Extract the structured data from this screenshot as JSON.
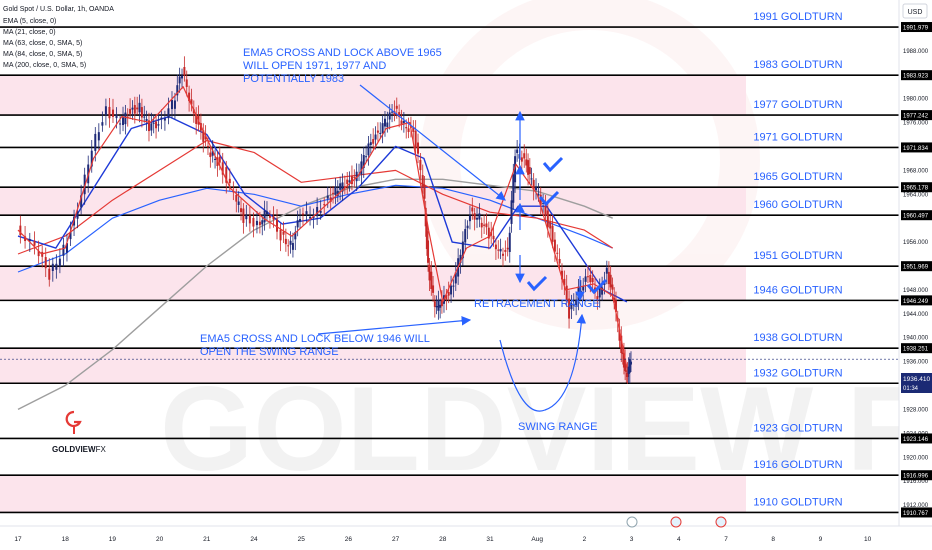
{
  "header": {
    "title": "Gold Spot / U.S. Dollar, 1h, OANDA",
    "indicators": [
      "EMA (5, close, 0)",
      "MA (21, close, 0)",
      "MA (63, close, 0, SMA, 5)",
      "MA (84, close, 0, SMA, 5)",
      "MA (200, close, 0, SMA, 5)"
    ],
    "currency": "USD"
  },
  "watermark": "GOLDVIEW FX",
  "logo": {
    "text_bold": "GOLDVIEW",
    "text_light": "FX"
  },
  "annotations": {
    "top_note": [
      "EMA5 CROSS AND LOCK ABOVE 1965",
      "WILL OPEN 1971, 1977 AND",
      "POTENTIALLY 1983"
    ],
    "bottom_note": [
      "EMA5 CROSS AND LOCK BELOW 1946 WILL",
      "OPEN THE SWING RANGE"
    ],
    "retracement": "RETRACEMENT RANGE",
    "swing": "SWING RANGE"
  },
  "colors": {
    "zone": "#fce4ec",
    "level_text": "#2962ff",
    "ema5": "#e53935",
    "ma21": "#1e3ad8",
    "ma63": "#e53935",
    "ma84": "#2962ff",
    "ma200": "#9e9e9e",
    "candle_up": "#1e2a78",
    "candle_down": "#c62828",
    "price_tag": "#1b2a74"
  },
  "chart_data": {
    "type": "line",
    "symbol": "XAUUSD",
    "timeframe": "1h",
    "ylim": [
      1908.5,
      1996.5
    ],
    "y_ticks": [
      1912,
      1916,
      1920,
      1924,
      1928,
      1932,
      1936,
      1940,
      1944,
      1948,
      1952,
      1956,
      1960,
      1964,
      1968,
      1972,
      1976,
      1980,
      1984,
      1988
    ],
    "x_ticks": [
      "17",
      "18",
      "19",
      "20",
      "21",
      "24",
      "25",
      "26",
      "27",
      "28",
      "31",
      "Aug",
      "2",
      "3",
      "4",
      "7",
      "8",
      "9",
      "10"
    ],
    "levels": [
      {
        "price": 1991.979,
        "tag": "1991.979",
        "label": "1991 GOLDTURN"
      },
      {
        "price": 1983.923,
        "tag": "1983.923",
        "label": "1983 GOLDTURN"
      },
      {
        "price": 1977.242,
        "tag": "1977.242",
        "label": "1977 GOLDTURN"
      },
      {
        "price": 1971.834,
        "tag": "1971.834",
        "label": "1971 GOLDTURN"
      },
      {
        "price": 1965.178,
        "tag": "1965.178",
        "label": "1965 GOLDTURN"
      },
      {
        "price": 1960.497,
        "tag": "1960.497",
        "label": "1960 GOLDTURN"
      },
      {
        "price": 1951.969,
        "tag": "1951.969",
        "label": "1951 GOLDTURN"
      },
      {
        "price": 1946.249,
        "tag": "1946.249",
        "label": "1946 GOLDTURN"
      },
      {
        "price": 1938.251,
        "tag": "1938.251",
        "label": "1938 GOLDTURN"
      },
      {
        "price": 1932.381,
        "tag": "1932.381",
        "label": "1932 GOLDTURN"
      },
      {
        "price": 1923.146,
        "tag": "1923.146",
        "label": "1923 GOLDTURN"
      },
      {
        "price": 1916.996,
        "tag": "1916.996",
        "label": "1916 GOLDTURN"
      },
      {
        "price": 1910.767,
        "tag": "1910.767",
        "label": "1910 GOLDTURN"
      }
    ],
    "zones": [
      [
        1983.923,
        1977.242
      ],
      [
        1965.178,
        1960.497
      ],
      [
        1951.969,
        1946.249
      ],
      [
        1938.251,
        1932.381
      ],
      [
        1916.996,
        1910.767
      ]
    ],
    "current_price": {
      "value": "1936.410",
      "countdown": "01:34",
      "numeric": 1936.41
    },
    "price_series": [
      {
        "x": 0,
        "y": 1958.5
      },
      {
        "x": 0.4,
        "y": 1955
      },
      {
        "x": 0.7,
        "y": 1950.5
      },
      {
        "x": 1.0,
        "y": 1955
      },
      {
        "x": 1.3,
        "y": 1961
      },
      {
        "x": 1.6,
        "y": 1972
      },
      {
        "x": 1.9,
        "y": 1978
      },
      {
        "x": 2.2,
        "y": 1976
      },
      {
        "x": 2.4,
        "y": 1978
      },
      {
        "x": 2.6,
        "y": 1978.5
      },
      {
        "x": 2.8,
        "y": 1975
      },
      {
        "x": 3.0,
        "y": 1976
      },
      {
        "x": 3.3,
        "y": 1979
      },
      {
        "x": 3.5,
        "y": 1984.5
      },
      {
        "x": 3.7,
        "y": 1979
      },
      {
        "x": 3.9,
        "y": 1974
      },
      {
        "x": 4.1,
        "y": 1971
      },
      {
        "x": 4.3,
        "y": 1969
      },
      {
        "x": 4.6,
        "y": 1964
      },
      {
        "x": 4.8,
        "y": 1960
      },
      {
        "x": 5.1,
        "y": 1959
      },
      {
        "x": 5.3,
        "y": 1961
      },
      {
        "x": 5.6,
        "y": 1957
      },
      {
        "x": 5.8,
        "y": 1955.5
      },
      {
        "x": 6.0,
        "y": 1960
      },
      {
        "x": 6.3,
        "y": 1961
      },
      {
        "x": 6.6,
        "y": 1963
      },
      {
        "x": 6.8,
        "y": 1965
      },
      {
        "x": 7.0,
        "y": 1966
      },
      {
        "x": 7.2,
        "y": 1967
      },
      {
        "x": 7.4,
        "y": 1971
      },
      {
        "x": 7.6,
        "y": 1974
      },
      {
        "x": 7.8,
        "y": 1976
      },
      {
        "x": 8.0,
        "y": 1978
      },
      {
        "x": 8.2,
        "y": 1976
      },
      {
        "x": 8.4,
        "y": 1974
      },
      {
        "x": 8.6,
        "y": 1966
      },
      {
        "x": 8.7,
        "y": 1952
      },
      {
        "x": 8.85,
        "y": 1945
      },
      {
        "x": 9.0,
        "y": 1946
      },
      {
        "x": 9.2,
        "y": 1948
      },
      {
        "x": 9.4,
        "y": 1954
      },
      {
        "x": 9.6,
        "y": 1961
      },
      {
        "x": 9.8,
        "y": 1960
      },
      {
        "x": 10.0,
        "y": 1957
      },
      {
        "x": 10.2,
        "y": 1955
      },
      {
        "x": 10.4,
        "y": 1954
      },
      {
        "x": 10.55,
        "y": 1971
      },
      {
        "x": 10.75,
        "y": 1970
      },
      {
        "x": 10.9,
        "y": 1966
      },
      {
        "x": 11.1,
        "y": 1963
      },
      {
        "x": 11.3,
        "y": 1958
      },
      {
        "x": 11.5,
        "y": 1952
      },
      {
        "x": 11.7,
        "y": 1944
      },
      {
        "x": 11.9,
        "y": 1948
      },
      {
        "x": 12.1,
        "y": 1950
      },
      {
        "x": 12.3,
        "y": 1947
      },
      {
        "x": 12.5,
        "y": 1951
      },
      {
        "x": 12.65,
        "y": 1946
      },
      {
        "x": 12.8,
        "y": 1938
      },
      {
        "x": 12.9,
        "y": 1933.5
      },
      {
        "x": 13.0,
        "y": 1936.4
      }
    ],
    "ma200_series": [
      {
        "x": 0,
        "y": 1928
      },
      {
        "x": 1,
        "y": 1932
      },
      {
        "x": 2,
        "y": 1938
      },
      {
        "x": 3,
        "y": 1945
      },
      {
        "x": 4,
        "y": 1952
      },
      {
        "x": 5,
        "y": 1958
      },
      {
        "x": 6,
        "y": 1962
      },
      {
        "x": 7,
        "y": 1965
      },
      {
        "x": 8,
        "y": 1966.5
      },
      {
        "x": 9,
        "y": 1966.5
      },
      {
        "x": 10,
        "y": 1965.5
      },
      {
        "x": 11,
        "y": 1964.5
      },
      {
        "x": 12,
        "y": 1962
      },
      {
        "x": 12.6,
        "y": 1960
      }
    ],
    "ma84_series": [
      {
        "x": 0,
        "y": 1951
      },
      {
        "x": 1,
        "y": 1954
      },
      {
        "x": 2,
        "y": 1960
      },
      {
        "x": 3,
        "y": 1963
      },
      {
        "x": 4,
        "y": 1965
      },
      {
        "x": 5,
        "y": 1964
      },
      {
        "x": 6,
        "y": 1962
      },
      {
        "x": 7,
        "y": 1964
      },
      {
        "x": 8,
        "y": 1965.5
      },
      {
        "x": 9,
        "y": 1965
      },
      {
        "x": 10,
        "y": 1963
      },
      {
        "x": 11,
        "y": 1960
      },
      {
        "x": 12,
        "y": 1957
      },
      {
        "x": 12.6,
        "y": 1955
      }
    ],
    "ma63_series": [
      {
        "x": 0,
        "y": 1954
      },
      {
        "x": 1,
        "y": 1957
      },
      {
        "x": 2,
        "y": 1963
      },
      {
        "x": 3,
        "y": 1968
      },
      {
        "x": 4,
        "y": 1973
      },
      {
        "x": 5,
        "y": 1971
      },
      {
        "x": 6,
        "y": 1966
      },
      {
        "x": 7,
        "y": 1967
      },
      {
        "x": 8,
        "y": 1968
      },
      {
        "x": 9,
        "y": 1964
      },
      {
        "x": 10,
        "y": 1961
      },
      {
        "x": 11,
        "y": 1960
      },
      {
        "x": 12,
        "y": 1958
      },
      {
        "x": 12.6,
        "y": 1955
      }
    ],
    "ma21_series": [
      {
        "x": 0,
        "y": 1957
      },
      {
        "x": 0.8,
        "y": 1955
      },
      {
        "x": 1.6,
        "y": 1965
      },
      {
        "x": 2.4,
        "y": 1975
      },
      {
        "x": 3.2,
        "y": 1977
      },
      {
        "x": 4.0,
        "y": 1974
      },
      {
        "x": 4.8,
        "y": 1964
      },
      {
        "x": 5.6,
        "y": 1959
      },
      {
        "x": 6.4,
        "y": 1960
      },
      {
        "x": 7.2,
        "y": 1965
      },
      {
        "x": 8.0,
        "y": 1972
      },
      {
        "x": 8.6,
        "y": 1970
      },
      {
        "x": 9.2,
        "y": 1956
      },
      {
        "x": 10.0,
        "y": 1955
      },
      {
        "x": 10.6,
        "y": 1962
      },
      {
        "x": 11.2,
        "y": 1962
      },
      {
        "x": 11.8,
        "y": 1955
      },
      {
        "x": 12.4,
        "y": 1948
      },
      {
        "x": 12.9,
        "y": 1946
      }
    ],
    "ema5_series": [
      {
        "x": 0,
        "y": 1958
      },
      {
        "x": 0.5,
        "y": 1954
      },
      {
        "x": 1.0,
        "y": 1955
      },
      {
        "x": 1.6,
        "y": 1970
      },
      {
        "x": 2.2,
        "y": 1977
      },
      {
        "x": 2.8,
        "y": 1976
      },
      {
        "x": 3.5,
        "y": 1982
      },
      {
        "x": 3.9,
        "y": 1975
      },
      {
        "x": 4.5,
        "y": 1965
      },
      {
        "x": 5.2,
        "y": 1960
      },
      {
        "x": 5.8,
        "y": 1957
      },
      {
        "x": 6.5,
        "y": 1962
      },
      {
        "x": 7.2,
        "y": 1967
      },
      {
        "x": 7.8,
        "y": 1975
      },
      {
        "x": 8.3,
        "y": 1976
      },
      {
        "x": 8.7,
        "y": 1958
      },
      {
        "x": 9.0,
        "y": 1946
      },
      {
        "x": 9.5,
        "y": 1955
      },
      {
        "x": 10.0,
        "y": 1957
      },
      {
        "x": 10.55,
        "y": 1969
      },
      {
        "x": 11.0,
        "y": 1964
      },
      {
        "x": 11.6,
        "y": 1948
      },
      {
        "x": 12.2,
        "y": 1949
      },
      {
        "x": 12.6,
        "y": 1947
      },
      {
        "x": 12.9,
        "y": 1935
      }
    ],
    "xlabel": "",
    "ylabel": "",
    "grid": false,
    "legend": "top-left"
  }
}
